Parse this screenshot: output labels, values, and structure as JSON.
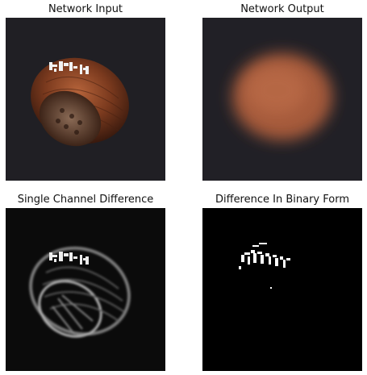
{
  "panels": [
    {
      "title": "Network Input"
    },
    {
      "title": "Network Output"
    },
    {
      "title": "Single Channel Difference"
    },
    {
      "title": "Difference In Binary Form"
    }
  ],
  "colors": {
    "background_dark": "#1e1d22",
    "hazelnut": "#7a3a1f",
    "blurred_hazelnut": "#a85a3a",
    "binary_background": "#000000",
    "binary_foreground": "#ffffff"
  }
}
